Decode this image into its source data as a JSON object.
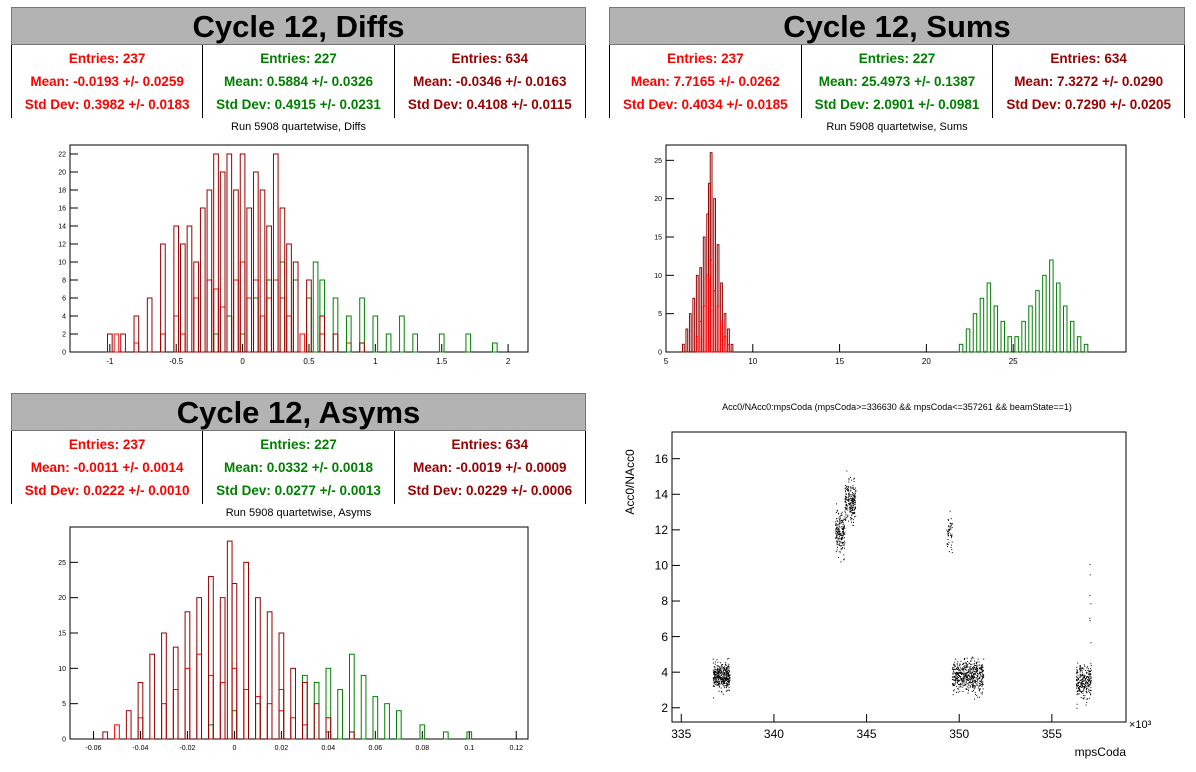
{
  "panels": {
    "diffs": {
      "banner": "Cycle 12, Diffs",
      "stats": [
        {
          "entries": "Entries: 237",
          "mean": "Mean: -0.0193 +/- 0.0259",
          "std": "Std Dev: 0.3982 +/- 0.0183",
          "color": "#ff0000"
        },
        {
          "entries": "Entries: 227",
          "mean": "Mean: 0.5884 +/- 0.0326",
          "std": "Std Dev: 0.4915 +/- 0.0231",
          "color": "#008000"
        },
        {
          "entries": "Entries: 634",
          "mean": "Mean: -0.0346 +/- 0.0163",
          "std": "Std Dev: 0.4108 +/- 0.0115",
          "color": "#990000"
        }
      ],
      "plot_title": "Run 5908 quartetwise, Diffs"
    },
    "sums": {
      "banner": "Cycle 12, Sums",
      "stats": [
        {
          "entries": "Entries: 237",
          "mean": "Mean: 7.7165 +/- 0.0262",
          "std": "Std Dev: 0.4034 +/- 0.0185",
          "color": "#ff0000"
        },
        {
          "entries": "Entries: 227",
          "mean": "Mean: 25.4973 +/- 0.1387",
          "std": "Std Dev: 2.0901 +/- 0.0981",
          "color": "#008000"
        },
        {
          "entries": "Entries: 634",
          "mean": "Mean: 7.3272 +/- 0.0290",
          "std": "Std Dev: 0.7290 +/- 0.0205",
          "color": "#990000"
        }
      ],
      "plot_title": "Run 5908 quartetwise, Sums"
    },
    "asyms": {
      "banner": "Cycle 12, Asyms",
      "stats": [
        {
          "entries": "Entries: 237",
          "mean": "Mean: -0.0011 +/- 0.0014",
          "std": "Std Dev: 0.0222 +/- 0.0010",
          "color": "#ff0000"
        },
        {
          "entries": "Entries: 227",
          "mean": "Mean: 0.0332 +/- 0.0018",
          "std": "Std Dev: 0.0277 +/- 0.0013",
          "color": "#008000"
        },
        {
          "entries": "Entries: 634",
          "mean": "Mean: -0.0019 +/- 0.0009",
          "std": "Std Dev: 0.0229 +/- 0.0006",
          "color": "#990000"
        }
      ],
      "plot_title": "Run 5908 quartetwise, Asyms"
    },
    "scatter": {
      "plot_title": "Acc0/NAcc0:mpsCoda (mpsCoda>=336630 && mpsCoda<=357261 && beamState==1)"
    }
  },
  "chart_data": [
    {
      "type": "histogram",
      "id": "diffs",
      "xlim": [
        -1.3,
        2.15
      ],
      "ylim": [
        0,
        23
      ],
      "xticks": [
        -1,
        -0.5,
        0,
        0.5,
        1,
        1.5,
        2
      ],
      "xtick_labels": [
        "-1",
        "-0.5",
        "0",
        "0.5",
        "1",
        "1.5",
        "2"
      ],
      "yticks": [
        0,
        2,
        4,
        6,
        8,
        10,
        12,
        14,
        16,
        18,
        20,
        22
      ],
      "ytick_labels": [
        "0",
        "2",
        "4",
        "6",
        "8",
        "10",
        "12",
        "14",
        "16",
        "18",
        "20",
        "22"
      ],
      "series": [
        {
          "color": "#ff0000",
          "bin_width": 0.035,
          "values": [
            {
              "x": -0.95,
              "y": 2
            },
            {
              "x": -0.8,
              "y": 1
            },
            {
              "x": -0.6,
              "y": 2
            },
            {
              "x": -0.5,
              "y": 4
            },
            {
              "x": -0.45,
              "y": 2
            },
            {
              "x": -0.35,
              "y": 6
            },
            {
              "x": -0.25,
              "y": 8
            },
            {
              "x": -0.2,
              "y": 7
            },
            {
              "x": -0.15,
              "y": 5
            },
            {
              "x": -0.1,
              "y": 4
            },
            {
              "x": -0.05,
              "y": 8
            },
            {
              "x": 0.0,
              "y": 10
            },
            {
              "x": 0.05,
              "y": 6
            },
            {
              "x": 0.1,
              "y": 8
            },
            {
              "x": 0.15,
              "y": 4
            },
            {
              "x": 0.2,
              "y": 6
            },
            {
              "x": 0.25,
              "y": 8
            },
            {
              "x": 0.3,
              "y": 6
            },
            {
              "x": 0.35,
              "y": 4
            },
            {
              "x": 0.45,
              "y": 2
            },
            {
              "x": 0.6,
              "y": 2
            },
            {
              "x": 0.8,
              "y": 1
            }
          ]
        },
        {
          "color": "#008000",
          "bin_width": 0.035,
          "values": [
            {
              "x": -0.2,
              "y": 2
            },
            {
              "x": -0.1,
              "y": 4
            },
            {
              "x": 0.0,
              "y": 2
            },
            {
              "x": 0.1,
              "y": 6
            },
            {
              "x": 0.2,
              "y": 8
            },
            {
              "x": 0.3,
              "y": 10
            },
            {
              "x": 0.4,
              "y": 8
            },
            {
              "x": 0.5,
              "y": 6
            },
            {
              "x": 0.55,
              "y": 10
            },
            {
              "x": 0.6,
              "y": 8
            },
            {
              "x": 0.7,
              "y": 6
            },
            {
              "x": 0.8,
              "y": 4
            },
            {
              "x": 0.9,
              "y": 6
            },
            {
              "x": 1.0,
              "y": 4
            },
            {
              "x": 1.1,
              "y": 2
            },
            {
              "x": 1.2,
              "y": 4
            },
            {
              "x": 1.3,
              "y": 2
            },
            {
              "x": 1.5,
              "y": 2
            },
            {
              "x": 1.7,
              "y": 2
            },
            {
              "x": 1.9,
              "y": 1
            }
          ]
        },
        {
          "color": "#990000",
          "bin_width": 0.035,
          "values": [
            {
              "x": -1.0,
              "y": 2
            },
            {
              "x": -0.9,
              "y": 2
            },
            {
              "x": -0.8,
              "y": 4
            },
            {
              "x": -0.7,
              "y": 6
            },
            {
              "x": -0.6,
              "y": 12
            },
            {
              "x": -0.5,
              "y": 14
            },
            {
              "x": -0.45,
              "y": 12
            },
            {
              "x": -0.4,
              "y": 14
            },
            {
              "x": -0.35,
              "y": 10
            },
            {
              "x": -0.3,
              "y": 16
            },
            {
              "x": -0.25,
              "y": 18
            },
            {
              "x": -0.2,
              "y": 22
            },
            {
              "x": -0.15,
              "y": 20
            },
            {
              "x": -0.1,
              "y": 22
            },
            {
              "x": -0.05,
              "y": 18
            },
            {
              "x": 0.0,
              "y": 22
            },
            {
              "x": 0.05,
              "y": 16
            },
            {
              "x": 0.1,
              "y": 20
            },
            {
              "x": 0.15,
              "y": 18
            },
            {
              "x": 0.2,
              "y": 14
            },
            {
              "x": 0.25,
              "y": 22
            },
            {
              "x": 0.3,
              "y": 16
            },
            {
              "x": 0.35,
              "y": 12
            },
            {
              "x": 0.4,
              "y": 10
            },
            {
              "x": 0.5,
              "y": 8
            },
            {
              "x": 0.6,
              "y": 4
            },
            {
              "x": 0.7,
              "y": 2
            },
            {
              "x": 0.9,
              "y": 1
            }
          ]
        }
      ]
    },
    {
      "type": "histogram",
      "id": "sums",
      "xlim": [
        5,
        31.5
      ],
      "ylim": [
        0,
        27
      ],
      "xticks": [
        5,
        10,
        15,
        20,
        25
      ],
      "xtick_labels": [
        "5",
        "10",
        "15",
        "20",
        "25"
      ],
      "yticks": [
        0,
        5,
        10,
        15,
        20,
        25
      ],
      "ytick_labels": [
        "0",
        "5",
        "10",
        "15",
        "20",
        "25"
      ],
      "series": [
        {
          "color": "#990000",
          "bin_width": 0.1,
          "values": [
            {
              "x": 6.0,
              "y": 1
            },
            {
              "x": 6.2,
              "y": 3
            },
            {
              "x": 6.4,
              "y": 5
            },
            {
              "x": 6.6,
              "y": 7
            },
            {
              "x": 6.8,
              "y": 10
            },
            {
              "x": 7.0,
              "y": 11
            },
            {
              "x": 7.2,
              "y": 15
            },
            {
              "x": 7.4,
              "y": 18
            },
            {
              "x": 7.5,
              "y": 22
            },
            {
              "x": 7.6,
              "y": 26
            },
            {
              "x": 7.8,
              "y": 20
            },
            {
              "x": 8.0,
              "y": 14
            },
            {
              "x": 8.2,
              "y": 9
            },
            {
              "x": 8.4,
              "y": 5
            },
            {
              "x": 8.6,
              "y": 3
            },
            {
              "x": 8.8,
              "y": 1
            }
          ]
        },
        {
          "color": "#ff0000",
          "bin_width": 0.1,
          "values": [
            {
              "x": 6.8,
              "y": 2
            },
            {
              "x": 7.0,
              "y": 4
            },
            {
              "x": 7.2,
              "y": 6
            },
            {
              "x": 7.4,
              "y": 10
            },
            {
              "x": 7.6,
              "y": 12
            },
            {
              "x": 7.8,
              "y": 8
            },
            {
              "x": 8.0,
              "y": 6
            },
            {
              "x": 8.2,
              "y": 4
            },
            {
              "x": 8.4,
              "y": 2
            },
            {
              "x": 8.6,
              "y": 1
            }
          ]
        },
        {
          "color": "#008000",
          "bin_width": 0.2,
          "values": [
            {
              "x": 22.0,
              "y": 1
            },
            {
              "x": 22.4,
              "y": 3
            },
            {
              "x": 22.8,
              "y": 5
            },
            {
              "x": 23.2,
              "y": 7
            },
            {
              "x": 23.6,
              "y": 9
            },
            {
              "x": 24.0,
              "y": 6
            },
            {
              "x": 24.4,
              "y": 4
            },
            {
              "x": 24.8,
              "y": 2
            },
            {
              "x": 25.2,
              "y": 2
            },
            {
              "x": 25.6,
              "y": 4
            },
            {
              "x": 26.0,
              "y": 6
            },
            {
              "x": 26.4,
              "y": 8
            },
            {
              "x": 26.8,
              "y": 10
            },
            {
              "x": 27.2,
              "y": 12
            },
            {
              "x": 27.6,
              "y": 9
            },
            {
              "x": 28.0,
              "y": 6
            },
            {
              "x": 28.4,
              "y": 4
            },
            {
              "x": 28.8,
              "y": 2
            },
            {
              "x": 29.2,
              "y": 1
            }
          ]
        }
      ]
    },
    {
      "type": "histogram",
      "id": "asyms",
      "xlim": [
        -0.07,
        0.125
      ],
      "ylim": [
        0,
        30
      ],
      "xticks": [
        -0.06,
        -0.04,
        -0.02,
        0,
        0.02,
        0.04,
        0.06,
        0.08,
        0.1,
        0.12
      ],
      "xtick_labels": [
        "-0.06",
        "-0.04",
        "-0.02",
        "0",
        "0.02",
        "0.04",
        "0.06",
        "0.08",
        "0.1",
        "0.12"
      ],
      "yticks": [
        0,
        5,
        10,
        15,
        20,
        25
      ],
      "ytick_labels": [
        "0",
        "5",
        "10",
        "15",
        "20",
        "25"
      ],
      "series": [
        {
          "color": "#ff0000",
          "bin_width": 0.002,
          "values": [
            {
              "x": -0.05,
              "y": 2
            },
            {
              "x": -0.04,
              "y": 3
            },
            {
              "x": -0.03,
              "y": 5
            },
            {
              "x": -0.025,
              "y": 7
            },
            {
              "x": -0.02,
              "y": 10
            },
            {
              "x": -0.015,
              "y": 12
            },
            {
              "x": -0.01,
              "y": 9
            },
            {
              "x": -0.005,
              "y": 8
            },
            {
              "x": 0.0,
              "y": 10
            },
            {
              "x": 0.005,
              "y": 7
            },
            {
              "x": 0.01,
              "y": 6
            },
            {
              "x": 0.015,
              "y": 5
            },
            {
              "x": 0.02,
              "y": 4
            },
            {
              "x": 0.025,
              "y": 3
            },
            {
              "x": 0.03,
              "y": 2
            },
            {
              "x": 0.04,
              "y": 1
            }
          ]
        },
        {
          "color": "#008000",
          "bin_width": 0.002,
          "values": [
            {
              "x": -0.01,
              "y": 2
            },
            {
              "x": 0.0,
              "y": 4
            },
            {
              "x": 0.01,
              "y": 5
            },
            {
              "x": 0.02,
              "y": 7
            },
            {
              "x": 0.03,
              "y": 9
            },
            {
              "x": 0.035,
              "y": 8
            },
            {
              "x": 0.04,
              "y": 10
            },
            {
              "x": 0.045,
              "y": 7
            },
            {
              "x": 0.05,
              "y": 12
            },
            {
              "x": 0.055,
              "y": 9
            },
            {
              "x": 0.06,
              "y": 6
            },
            {
              "x": 0.065,
              "y": 5
            },
            {
              "x": 0.07,
              "y": 4
            },
            {
              "x": 0.08,
              "y": 2
            },
            {
              "x": 0.09,
              "y": 1
            },
            {
              "x": 0.1,
              "y": 1
            }
          ]
        },
        {
          "color": "#990000",
          "bin_width": 0.002,
          "values": [
            {
              "x": -0.055,
              "y": 1
            },
            {
              "x": -0.045,
              "y": 4
            },
            {
              "x": -0.04,
              "y": 8
            },
            {
              "x": -0.035,
              "y": 12
            },
            {
              "x": -0.03,
              "y": 15
            },
            {
              "x": -0.025,
              "y": 13
            },
            {
              "x": -0.02,
              "y": 18
            },
            {
              "x": -0.015,
              "y": 20
            },
            {
              "x": -0.01,
              "y": 23
            },
            {
              "x": -0.005,
              "y": 20
            },
            {
              "x": -0.002,
              "y": 28
            },
            {
              "x": 0.0,
              "y": 22
            },
            {
              "x": 0.005,
              "y": 25
            },
            {
              "x": 0.01,
              "y": 20
            },
            {
              "x": 0.015,
              "y": 18
            },
            {
              "x": 0.02,
              "y": 15
            },
            {
              "x": 0.025,
              "y": 10
            },
            {
              "x": 0.03,
              "y": 8
            },
            {
              "x": 0.035,
              "y": 5
            },
            {
              "x": 0.04,
              "y": 3
            },
            {
              "x": 0.05,
              "y": 1
            }
          ]
        }
      ]
    },
    {
      "type": "scatter",
      "id": "scatter",
      "xlabel": "mpsCoda",
      "ylabel": "Acc0/NAcc0",
      "x_multiplier": "×10³",
      "xlim": [
        334.5,
        359
      ],
      "ylim": [
        1.2,
        17.5
      ],
      "xticks": [
        335,
        340,
        345,
        350,
        355
      ],
      "xtick_labels": [
        "335",
        "340",
        "345",
        "350",
        "355"
      ],
      "yticks": [
        2,
        4,
        6,
        8,
        10,
        12,
        14,
        16
      ],
      "ytick_labels": [
        "2",
        "4",
        "6",
        "8",
        "10",
        "12",
        "14",
        "16"
      ],
      "clusters": [
        {
          "x_range": [
            336.7,
            337.6
          ],
          "y_mean": 3.8,
          "y_sd": 0.35,
          "n": 380
        },
        {
          "x_range": [
            343.3,
            343.8
          ],
          "y_mean": 11.8,
          "y_sd": 0.55,
          "n": 180
        },
        {
          "x_range": [
            343.8,
            344.4
          ],
          "y_mean": 13.6,
          "y_sd": 0.55,
          "n": 220
        },
        {
          "x_range": [
            349.3,
            349.6
          ],
          "y_mean": 11.8,
          "y_sd": 0.5,
          "n": 50
        },
        {
          "x_range": [
            349.6,
            351.3
          ],
          "y_mean": 3.8,
          "y_sd": 0.45,
          "n": 520
        },
        {
          "x_range": [
            356.3,
            357.1
          ],
          "y_mean": 3.5,
          "y_sd": 0.45,
          "n": 260
        },
        {
          "x_range": [
            357.0,
            357.1
          ],
          "y_mean": 8.0,
          "y_sd": 1.5,
          "n": 8
        }
      ]
    }
  ]
}
